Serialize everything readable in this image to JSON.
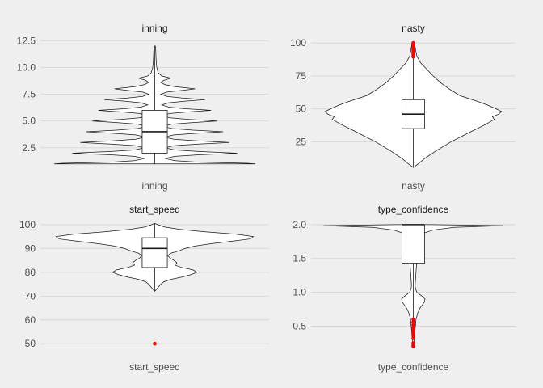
{
  "chart_data": [
    {
      "type": "violin",
      "title": "inning",
      "xlabel": "inning",
      "yticks": [
        2.5,
        5.0,
        7.5,
        10.0,
        12.5
      ],
      "ytick_labels": [
        "2.5",
        "5.0",
        "7.5",
        "10.0",
        "12.5"
      ],
      "ylim": [
        0.6,
        12.9
      ],
      "violin_max_half_width_frac": 0.5,
      "violin_profile": [
        [
          1.0,
          1.0
        ],
        [
          1.05,
          0.92
        ],
        [
          1.15,
          0.45
        ],
        [
          1.3,
          0.2
        ],
        [
          1.5,
          0.1
        ],
        [
          1.7,
          0.2
        ],
        [
          1.85,
          0.45
        ],
        [
          2.0,
          0.82
        ],
        [
          2.15,
          0.45
        ],
        [
          2.3,
          0.2
        ],
        [
          2.5,
          0.1
        ],
        [
          2.7,
          0.2
        ],
        [
          2.85,
          0.45
        ],
        [
          3.0,
          0.74
        ],
        [
          3.15,
          0.42
        ],
        [
          3.3,
          0.19
        ],
        [
          3.5,
          0.09
        ],
        [
          3.7,
          0.19
        ],
        [
          3.85,
          0.42
        ],
        [
          4.0,
          0.68
        ],
        [
          4.15,
          0.38
        ],
        [
          4.3,
          0.17
        ],
        [
          4.5,
          0.08
        ],
        [
          4.7,
          0.17
        ],
        [
          4.85,
          0.38
        ],
        [
          5.0,
          0.62
        ],
        [
          5.15,
          0.34
        ],
        [
          5.3,
          0.15
        ],
        [
          5.5,
          0.07
        ],
        [
          5.7,
          0.15
        ],
        [
          5.85,
          0.34
        ],
        [
          6.0,
          0.56
        ],
        [
          6.15,
          0.3
        ],
        [
          6.3,
          0.14
        ],
        [
          6.5,
          0.07
        ],
        [
          6.7,
          0.14
        ],
        [
          6.85,
          0.3
        ],
        [
          7.0,
          0.5
        ],
        [
          7.15,
          0.27
        ],
        [
          7.3,
          0.12
        ],
        [
          7.5,
          0.06
        ],
        [
          7.7,
          0.12
        ],
        [
          7.85,
          0.27
        ],
        [
          8.0,
          0.4
        ],
        [
          8.2,
          0.2
        ],
        [
          8.4,
          0.1
        ],
        [
          8.6,
          0.06
        ],
        [
          8.8,
          0.09
        ],
        [
          9.0,
          0.16
        ],
        [
          9.2,
          0.07
        ],
        [
          9.5,
          0.035
        ],
        [
          10.0,
          0.02
        ],
        [
          10.5,
          0.015
        ],
        [
          11.0,
          0.012
        ],
        [
          11.5,
          0.01
        ],
        [
          12.0,
          0.006
        ]
      ],
      "box": {
        "q1": 2,
        "median": 4,
        "q3": 6,
        "whisker_low": 1,
        "whisker_high": 12
      },
      "outliers": []
    },
    {
      "type": "violin",
      "title": "nasty",
      "xlabel": "nasty",
      "yticks": [
        25,
        50,
        75,
        100
      ],
      "ytick_labels": [
        "25",
        "50",
        "75",
        "100"
      ],
      "ylim": [
        5,
        105
      ],
      "violin_max_half_width_frac": 0.5,
      "violin_profile": [
        [
          5.5,
          0.0
        ],
        [
          8,
          0.05
        ],
        [
          12,
          0.12
        ],
        [
          18,
          0.25
        ],
        [
          25,
          0.42
        ],
        [
          32,
          0.62
        ],
        [
          38,
          0.8
        ],
        [
          42,
          0.9
        ],
        [
          44,
          0.88
        ],
        [
          46,
          0.95
        ],
        [
          48,
          0.98
        ],
        [
          50,
          0.92
        ],
        [
          53,
          0.82
        ],
        [
          56,
          0.7
        ],
        [
          60,
          0.52
        ],
        [
          65,
          0.4
        ],
        [
          70,
          0.3
        ],
        [
          75,
          0.22
        ],
        [
          80,
          0.15
        ],
        [
          85,
          0.08
        ],
        [
          90,
          0.04
        ],
        [
          95,
          0.025
        ],
        [
          100,
          0.015
        ]
      ],
      "box": {
        "q1": 35,
        "median": 46,
        "q3": 57,
        "whisker_low": 5.5,
        "whisker_high": 89
      },
      "outliers": [
        89.5,
        90.5,
        91.5,
        92.5,
        93.5,
        94.5,
        95.5,
        96.5,
        97.5,
        98.5,
        99.5,
        100
      ]
    },
    {
      "type": "violin",
      "title": "start_speed",
      "xlabel": "start_speed",
      "yticks": [
        50,
        60,
        70,
        80,
        90,
        100
      ],
      "ytick_labels": [
        "50",
        "60",
        "70",
        "80",
        "90",
        "100"
      ],
      "ylim": [
        46,
        102
      ],
      "violin_max_half_width_frac": 0.5,
      "violin_profile": [
        [
          72,
          0.0
        ],
        [
          73,
          0.02
        ],
        [
          74,
          0.04
        ],
        [
          75,
          0.06
        ],
        [
          76,
          0.09
        ],
        [
          77,
          0.16
        ],
        [
          78,
          0.27
        ],
        [
          79,
          0.36
        ],
        [
          80,
          0.42
        ],
        [
          81,
          0.38
        ],
        [
          82,
          0.27
        ],
        [
          83,
          0.2
        ],
        [
          84,
          0.22
        ],
        [
          85,
          0.19
        ],
        [
          86,
          0.15
        ],
        [
          87,
          0.13
        ],
        [
          88,
          0.16
        ],
        [
          89,
          0.24
        ],
        [
          90,
          0.3
        ],
        [
          91,
          0.4
        ],
        [
          92,
          0.56
        ],
        [
          93,
          0.76
        ],
        [
          94,
          0.95
        ],
        [
          95,
          0.98
        ],
        [
          96,
          0.8
        ],
        [
          97,
          0.5
        ],
        [
          98,
          0.25
        ],
        [
          99,
          0.1
        ],
        [
          100,
          0.03
        ],
        [
          100.5,
          0.0
        ]
      ],
      "box": {
        "q1": 82,
        "median": 90,
        "q3": 94.5,
        "whisker_low": 72,
        "whisker_high": 100.5
      },
      "outliers": [
        50
      ]
    },
    {
      "type": "violin",
      "title": "type_confidence",
      "xlabel": "type_confidence",
      "yticks": [
        0.5,
        1.0,
        1.5,
        2.0
      ],
      "ytick_labels": [
        "0.5",
        "1.0",
        "1.5",
        "2.0"
      ],
      "ylim": [
        0.1,
        2.07
      ],
      "violin_max_half_width_frac": 0.5,
      "violin_profile": [
        [
          0.18,
          0.0
        ],
        [
          0.3,
          0.01
        ],
        [
          0.45,
          0.02
        ],
        [
          0.6,
          0.03
        ],
        [
          0.7,
          0.05
        ],
        [
          0.78,
          0.08
        ],
        [
          0.85,
          0.12
        ],
        [
          0.9,
          0.13
        ],
        [
          0.95,
          0.09
        ],
        [
          1.0,
          0.04
        ],
        [
          1.05,
          0.025
        ],
        [
          1.1,
          0.02
        ],
        [
          1.2,
          0.025
        ],
        [
          1.3,
          0.03
        ],
        [
          1.4,
          0.035
        ],
        [
          1.5,
          0.04
        ],
        [
          1.6,
          0.045
        ],
        [
          1.7,
          0.05
        ],
        [
          1.8,
          0.06
        ],
        [
          1.86,
          0.08
        ],
        [
          1.92,
          0.22
        ],
        [
          1.96,
          0.45
        ],
        [
          1.985,
          1.0
        ],
        [
          2.0,
          0.2
        ]
      ],
      "box": {
        "q1": 1.43,
        "median": 2.0,
        "q3": 2.0,
        "whisker_low": 0.6,
        "whisker_high": 2.0
      },
      "outliers": [
        0.2,
        0.22,
        0.25,
        0.32,
        0.36,
        0.4,
        0.44,
        0.48,
        0.52,
        0.56,
        0.6
      ]
    }
  ],
  "colors": {
    "background": "#efefef",
    "grid": "#d6d6d6",
    "violin_fill": "#ffffff",
    "line": "#1a1a1a",
    "outlier": "#ff0000",
    "tick_text": "#4d4d4d",
    "title_text": "#1a1a1a"
  }
}
